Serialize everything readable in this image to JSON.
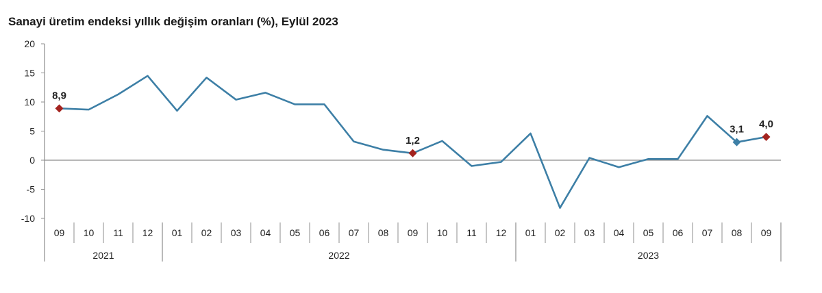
{
  "title": "Sanayi üretim endeksi yıllık değişim oranları (%), Eylül 2023",
  "chart_data": {
    "type": "line",
    "title": "Sanayi üretim endeksi yıllık değişim oranları (%), Eylül 2023",
    "xlabel": "",
    "ylabel": "",
    "ylim": [
      -10,
      20
    ],
    "yticks": [
      20,
      15,
      10,
      5,
      0,
      -5,
      -10
    ],
    "categories": [
      "09",
      "10",
      "11",
      "12",
      "01",
      "02",
      "03",
      "04",
      "05",
      "06",
      "07",
      "08",
      "09",
      "10",
      "11",
      "12",
      "01",
      "02",
      "03",
      "04",
      "05",
      "06",
      "07",
      "08",
      "09"
    ],
    "years": [
      {
        "label": "2021",
        "start": 0,
        "end": 3
      },
      {
        "label": "2022",
        "start": 4,
        "end": 15
      },
      {
        "label": "2023",
        "start": 16,
        "end": 24
      }
    ],
    "series": [
      {
        "values": [
          8.9,
          8.7,
          11.3,
          14.5,
          8.5,
          14.2,
          10.4,
          11.6,
          9.6,
          9.6,
          3.2,
          1.8,
          1.2,
          3.3,
          -1.0,
          -0.3,
          4.6,
          -8.2,
          0.4,
          -1.2,
          0.2,
          0.2,
          7.6,
          3.1,
          4.0
        ],
        "color": "#3d7fa6"
      }
    ],
    "labeled_points": [
      {
        "index": 0,
        "label": "8,9",
        "marker": "diamond",
        "color": "#a3231f"
      },
      {
        "index": 12,
        "label": "1,2",
        "marker": "diamond",
        "color": "#a3231f"
      },
      {
        "index": 23,
        "label": "3,1",
        "marker": "diamond",
        "color": "#3d7fa6"
      },
      {
        "index": 24,
        "label": "4,0",
        "marker": "diamond",
        "color": "#a3231f"
      }
    ],
    "grid": false,
    "legend": "none"
  }
}
